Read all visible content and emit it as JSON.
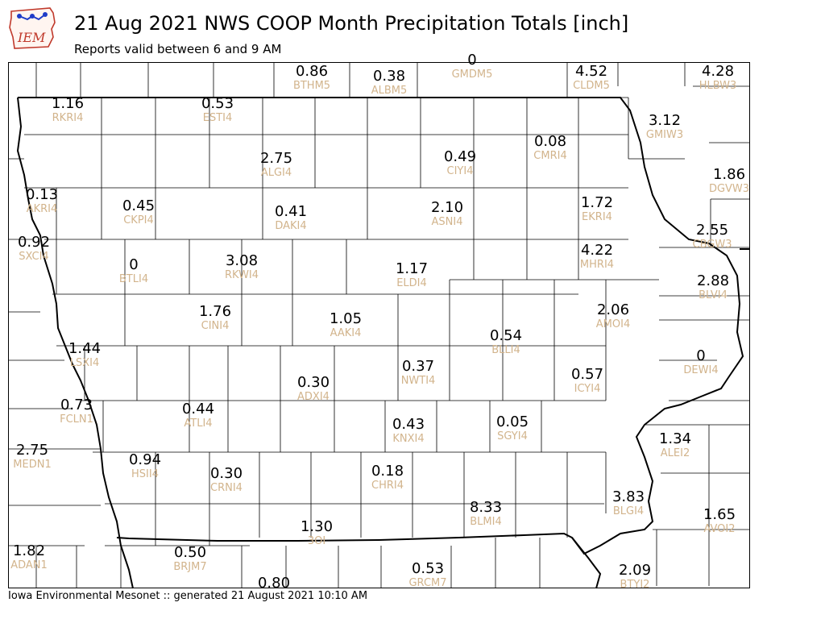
{
  "title": "21 Aug 2021 NWS COOP Month Precipitation Totals [inch]",
  "subtitle": "Reports valid between 6 and 9 AM",
  "footer": "Iowa Environmental Mesonet :: generated 21 August 2021 10:10 AM",
  "logo_text": "IEM",
  "colors": {
    "value_text": "#000000",
    "station_text": "#d2b48c",
    "county_lines": "#000000",
    "logo_red": "#c0392b",
    "logo_blue": "#1e3cc8"
  },
  "stations": [
    {
      "id": "BTHM5",
      "value": "0.86"
    },
    {
      "id": "ALBM5",
      "value": "0.38"
    },
    {
      "id": "GMDM5",
      "value": "0"
    },
    {
      "id": "CLDM5",
      "value": "4.52"
    },
    {
      "id": "HLBW3",
      "value": "4.28"
    },
    {
      "id": "RKRI4",
      "value": "1.16"
    },
    {
      "id": "ESTI4",
      "value": "0.53"
    },
    {
      "id": "GMIW3",
      "value": "3.12"
    },
    {
      "id": "ALGI4",
      "value": "2.75"
    },
    {
      "id": "CIYI4",
      "value": "0.49"
    },
    {
      "id": "CMRI4",
      "value": "0.08"
    },
    {
      "id": "DGVW3",
      "value": "1.86"
    },
    {
      "id": "AKRI4",
      "value": "0.13"
    },
    {
      "id": "CKPI4",
      "value": "0.45"
    },
    {
      "id": "DAKI4",
      "value": "0.41"
    },
    {
      "id": "ASNI4",
      "value": "2.10"
    },
    {
      "id": "EKRI4",
      "value": "1.72"
    },
    {
      "id": "CBGW3",
      "value": "2.55"
    },
    {
      "id": "SXCI4",
      "value": "0.92"
    },
    {
      "id": "BTLI4",
      "value": "0"
    },
    {
      "id": "RKWI4",
      "value": "3.08"
    },
    {
      "id": "ELDI4",
      "value": "1.17"
    },
    {
      "id": "MHRI4",
      "value": "4.22"
    },
    {
      "id": "BLVI4",
      "value": "2.88"
    },
    {
      "id": "CINI4",
      "value": "1.76"
    },
    {
      "id": "AAKI4",
      "value": "1.05"
    },
    {
      "id": "AMOI4",
      "value": "2.06"
    },
    {
      "id": "LSXI4",
      "value": "1.44"
    },
    {
      "id": "BLLI4",
      "value": "0.54"
    },
    {
      "id": "DEWI4",
      "value": "0"
    },
    {
      "id": "NWTI4",
      "value": "0.37"
    },
    {
      "id": "ICYI4",
      "value": "0.57"
    },
    {
      "id": "ADXI4",
      "value": "0.30"
    },
    {
      "id": "FCLN1",
      "value": "0.73"
    },
    {
      "id": "ATLI4",
      "value": "0.44"
    },
    {
      "id": "KNXI4",
      "value": "0.43"
    },
    {
      "id": "SGYI4",
      "value": "0.05"
    },
    {
      "id": "ALEI2",
      "value": "1.34"
    },
    {
      "id": "MEDN1",
      "value": "2.75"
    },
    {
      "id": "HSII4",
      "value": "0.94"
    },
    {
      "id": "CRNI4",
      "value": "0.30"
    },
    {
      "id": "CHRI4",
      "value": "0.18"
    },
    {
      "id": "BLMI4",
      "value": "8.33"
    },
    {
      "id": "BLGI4",
      "value": "3.83"
    },
    {
      "id": "AVOI2",
      "value": "1.65"
    },
    {
      "id": "3OI",
      "value": "1.30"
    },
    {
      "id": "ADAN1",
      "value": "1.82"
    },
    {
      "id": "BRJM7",
      "value": "0.50"
    },
    {
      "id": "GRCM7",
      "value": "0.53"
    },
    {
      "id": "BTYI2",
      "value": "2.09"
    },
    {
      "id": "",
      "value": "0.80"
    }
  ]
}
